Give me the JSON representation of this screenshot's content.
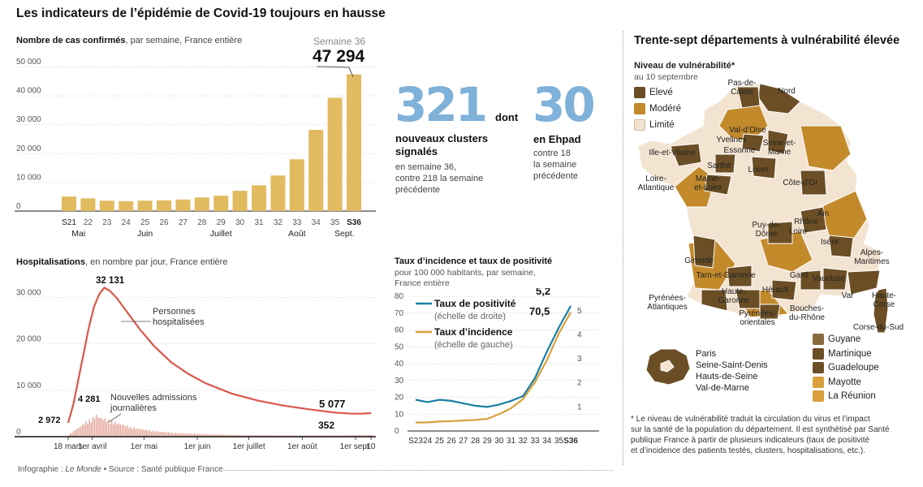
{
  "title": "Les indicateurs de l’épidémie de Covid-19 toujours en hausse",
  "cases": {
    "subtitle_bold": "Nombre de cas confirmés",
    "subtitle_rest": ", par semaine, France entière",
    "callout_label": "Semaine 36",
    "callout_value": "47 294"
  },
  "hosp": {
    "subtitle_bold": "Hospitalisations",
    "subtitle_rest": ", en nombre par jour, France entière",
    "peak_label": "32 131",
    "start_label": "2 972",
    "adm_peak_label": "4 281",
    "hosp_end_label": "5 077",
    "adm_end_label": "352",
    "series_label_hosp": [
      "Personnes",
      "hospitalisées"
    ],
    "series_label_adm": [
      "Nouvelles admissions",
      "journalières"
    ]
  },
  "stats": {
    "clusters_value": "321",
    "dont": "dont",
    "ehpad_value": "30",
    "clusters_label": [
      "nouveaux clusters",
      "signalés"
    ],
    "clusters_note": [
      "en semaine 36,",
      "contre 218 la semaine",
      "précédente"
    ],
    "ehpad_label": "en Ehpad",
    "ehpad_note": [
      "contre 18",
      "la semaine",
      "précédente"
    ]
  },
  "rates": {
    "title": "Taux d’incidence et taux de positivité",
    "subtitle": [
      "pour 100 000 habitants, par semaine,",
      "France entière"
    ],
    "legend_pos": "Taux de positivité",
    "legend_pos_note": "(échelle de droite)",
    "legend_inc": "Taux d’incidence",
    "legend_inc_note": "(échelle de gauche)",
    "end_pos_label": "5,2",
    "end_inc_label": "70,5"
  },
  "map": {
    "title": "Trente-sept départements à vulnérabilité élevée",
    "legend_title": "Niveau de vulnérabilité*",
    "legend_date": "au 10 septembre",
    "levels": [
      {
        "label": "Elevé",
        "color": "#6b4e25"
      },
      {
        "label": "Modéré",
        "color": "#c38a2c"
      },
      {
        "label": "Limité",
        "color": "#f3e3d1"
      }
    ],
    "dept_labels": [
      "Pas-de-Calais",
      "Nord",
      "Val-d’Oise",
      "Yvelines",
      "Essonne",
      "Seine-et-Marne",
      "Ille-et-Vilaine",
      "Sarthe",
      "Loiret",
      "Loire-Atlantique",
      "Maine-et-Loire",
      "Côte-d’Or",
      "Ain",
      "Rhône",
      "Loire",
      "Puy-de-Dôme",
      "Isère",
      "Gironde",
      "Alpes-Maritimes",
      "Tarn-et-Garonne",
      "Gard",
      "Vaucluse",
      "Var",
      "Hérault",
      "Haute-Garonne",
      "Pyrénées-Atlantiques",
      "Pyrénées-Orientales",
      "Bouches-du-Rhône",
      "Haute-Corse",
      "Corse-du-Sud"
    ],
    "idf_labels": [
      "Paris",
      "Seine-Saint-Denis",
      "Hauts-de-Seine",
      "Val-de-Marne"
    ],
    "dom": [
      {
        "label": "Guyane",
        "color": "#8b6a3d"
      },
      {
        "label": "Martinique",
        "color": "#6b4e25"
      },
      {
        "label": "Guadeloupe",
        "color": "#6b4e25"
      },
      {
        "label": "Mayotte",
        "color": "#d9a03b"
      },
      {
        "label": "La Réunion",
        "color": "#d9a03b"
      }
    ],
    "footnote": [
      "* Le niveau de vulnérabilité traduit la circulation du virus et l’impact",
      "sur la santé de la population du département. Il est synthétisé par Santé",
      "publique France à partir de plusieurs indicateurs (taux de positivité",
      "et d’incidence des patients testés, clusters, hospitalisations, etc.)."
    ]
  },
  "footer": {
    "prefix": "Infographie : ",
    "paper": "Le Monde",
    "source": " • Source : Santé publique France"
  },
  "colors": {
    "bar": "#e2bb61",
    "hosp": "#d9574a",
    "adm": "#e3a497",
    "positivity": "#1a7fa3",
    "incidence": "#d9a03b",
    "blue_number": "#7fb1d9"
  },
  "chart_data": [
    {
      "type": "bar",
      "title": "Nombre de cas confirmés, par semaine, France entière",
      "categories": [
        "S21",
        "22",
        "23",
        "24",
        "25",
        "26",
        "27",
        "28",
        "29",
        "30",
        "31",
        "32",
        "33",
        "34",
        "35",
        "S36"
      ],
      "values": [
        5000,
        4400,
        3600,
        3400,
        3600,
        3700,
        4000,
        4700,
        5300,
        7000,
        8900,
        12300,
        17900,
        28100,
        39200,
        47294
      ],
      "month_labels": [
        "Mai",
        "Juin",
        "Juillet",
        "Août",
        "Sept."
      ],
      "yticks": [
        "0",
        "10 000",
        "20 000",
        "30 000",
        "40 000",
        "50 000"
      ],
      "ylim": [
        0,
        50000
      ]
    },
    {
      "type": "line",
      "title": "Hospitalisations, en nombre par jour, France entière",
      "x_labels": [
        "18 mars",
        "1er avril",
        "1er mai",
        "1er juin",
        "1er juillet",
        "1er août",
        "1er sept.",
        "10 sept."
      ],
      "yticks": [
        "0",
        "10 000",
        "20 000",
        "30 000"
      ],
      "ylim": [
        0,
        35000
      ],
      "series": [
        {
          "name": "Personnes hospitalisées",
          "x_days": [
            0,
            3,
            6,
            9,
            12,
            15,
            18,
            21,
            24,
            28,
            32,
            37,
            42,
            50,
            60,
            70,
            80,
            95,
            110,
            125,
            140,
            155,
            165,
            170,
            176
          ],
          "values": [
            2972,
            7000,
            12500,
            18000,
            23500,
            28000,
            30700,
            32131,
            31500,
            30000,
            28000,
            25500,
            23000,
            19500,
            16000,
            13500,
            11500,
            9300,
            7800,
            6700,
            5900,
            5200,
            4950,
            4950,
            5077
          ]
        },
        {
          "name": "Nouvelles admissions journalières",
          "x_days": [
            0,
            5,
            10,
            14,
            16,
            18,
            22,
            26,
            30,
            36,
            42,
            50,
            60,
            70,
            85,
            100,
            120,
            140,
            160,
            176
          ],
          "values": [
            400,
            1600,
            2900,
            3700,
            4281,
            3800,
            3400,
            2900,
            2500,
            1900,
            1500,
            1100,
            800,
            600,
            450,
            300,
            250,
            230,
            250,
            352
          ]
        }
      ]
    },
    {
      "type": "line",
      "title": "Taux d’incidence et taux de positivité",
      "categories": [
        "S23",
        "24",
        "25",
        "26",
        "27",
        "28",
        "29",
        "30",
        "31",
        "32",
        "33",
        "34",
        "35",
        "S36"
      ],
      "yticks_left": [
        "0",
        "10",
        "20",
        "30",
        "40",
        "50",
        "60",
        "70",
        "80"
      ],
      "yticks_right": [
        "1",
        "2",
        "3",
        "4",
        "5"
      ],
      "ylim_left": [
        0,
        80
      ],
      "ylim_right": [
        0,
        5.6
      ],
      "series": [
        {
          "name": "Taux de positivité",
          "axis": "right",
          "values": [
            1.3,
            1.2,
            1.3,
            1.25,
            1.15,
            1.05,
            1.0,
            1.1,
            1.25,
            1.45,
            2.2,
            3.3,
            4.3,
            5.2
          ]
        },
        {
          "name": "Taux d’incidence",
          "axis": "left",
          "values": [
            5,
            5.1,
            5.6,
            5.9,
            6.2,
            6.6,
            7.2,
            10,
            13.5,
            19,
            29,
            42,
            58,
            70.5
          ]
        }
      ]
    }
  ]
}
